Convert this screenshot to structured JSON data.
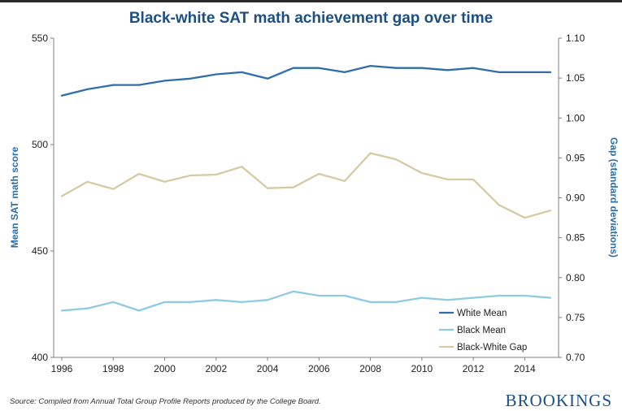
{
  "source_note": "Source: Compiled from Annual Total Group Profile Reports produced by the College Board.",
  "brand": "BROOKINGS",
  "chart_data": {
    "type": "line",
    "title": "Black-white SAT math achievement gap over time",
    "xlabel": "",
    "ylabel": "Mean SAT math score",
    "y2label": "Gap (standard deviations)",
    "x": [
      1996,
      1997,
      1998,
      1999,
      2000,
      2001,
      2002,
      2003,
      2004,
      2005,
      2006,
      2007,
      2008,
      2009,
      2010,
      2011,
      2012,
      2013,
      2014,
      2015
    ],
    "xlim": [
      1996,
      2015
    ],
    "x_ticks": [
      "1996",
      "1998",
      "2000",
      "2002",
      "2004",
      "2006",
      "2008",
      "2010",
      "2012",
      "2014"
    ],
    "ylim": [
      400,
      550
    ],
    "y_ticks": [
      "400",
      "450",
      "500",
      "550"
    ],
    "y2lim": [
      0.7,
      1.1
    ],
    "y2_ticks": [
      "0.70",
      "0.75",
      "0.80",
      "0.85",
      "0.90",
      "0.95",
      "1.00",
      "1.05",
      "1.10"
    ],
    "series": [
      {
        "name": "White Mean",
        "axis": "left",
        "color": "#2f6eaa",
        "values": [
          523,
          526,
          528,
          528,
          530,
          531,
          533,
          534,
          531,
          536,
          536,
          534,
          537,
          536,
          536,
          535,
          536,
          534,
          534,
          534
        ]
      },
      {
        "name": "Black Mean",
        "axis": "left",
        "color": "#8ecbe3",
        "values": [
          422,
          423,
          426,
          422,
          426,
          426,
          427,
          426,
          427,
          431,
          429,
          429,
          426,
          426,
          428,
          427,
          428,
          429,
          429,
          428
        ]
      },
      {
        "name": "Black-White Gap",
        "axis": "right",
        "color": "#d6c9a3",
        "values": [
          0.902,
          0.92,
          0.911,
          0.93,
          0.92,
          0.928,
          0.929,
          0.939,
          0.912,
          0.913,
          0.93,
          0.921,
          0.956,
          0.948,
          0.931,
          0.923,
          0.923,
          0.891,
          0.875,
          0.884
        ]
      }
    ],
    "legend_position": "bottom-right",
    "grid": false
  }
}
